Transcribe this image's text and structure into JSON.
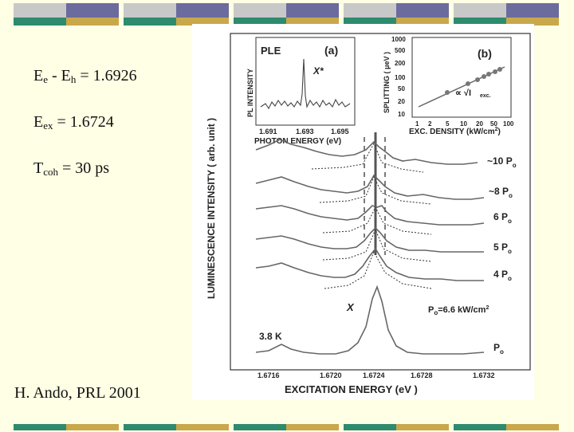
{
  "slide": {
    "equations": [
      {
        "main": "E",
        "sub1": "e",
        "mid": " - E",
        "sub2": "h",
        "tail": " = 1.6926"
      },
      {
        "main": "E",
        "sub1": "ex",
        "mid": " = 1.6724",
        "sub2": "",
        "tail": ""
      },
      {
        "main": "T",
        "sub1": "coh",
        "mid": " = 30 ps",
        "sub2": "",
        "tail": ""
      }
    ],
    "credit": "H. Ando, PRL 2001",
    "colors": {
      "background": "#ffffe5",
      "bar_gray": "#c8c8c8",
      "bar_blue": "#6b6b9e",
      "bar_teal": "#2e8b6e",
      "bar_gold": "#c8a84b"
    }
  },
  "figure": {
    "main_ylabel": "LUMINESCENCE INTENSITY ( arb. unit )",
    "main_xlabel": "EXCITATION ENERGY (eV )",
    "main_xticks": [
      "1.6716",
      "1.6720",
      "1.6724",
      "1.6728",
      "1.6732"
    ],
    "temperature": "3.8 K",
    "x_label": "X",
    "p0_note": "P",
    "p0_note_sub": "o",
    "p0_note_value": "=6.6 kW/cm",
    "p0_note_sup": "2",
    "power_labels": [
      {
        "pre": "~10 P",
        "sub": "o"
      },
      {
        "pre": "~8 P",
        "sub": "o"
      },
      {
        "pre": "6 P",
        "sub": "o"
      },
      {
        "pre": "5 P",
        "sub": "o"
      },
      {
        "pre": "4 P",
        "sub": "o"
      },
      {
        "pre": "P",
        "sub": "o"
      }
    ],
    "inset_a": {
      "title": "PLE",
      "tag": "(a)",
      "peak_label": "X*",
      "ylabel": "PL INTENSITY",
      "xlabel": "PHOTON ENERGY (eV)",
      "xticks": [
        "1.691",
        "1.693",
        "1.695"
      ]
    },
    "inset_b": {
      "tag": "(b)",
      "ylabel": "SPLITTING ( μeV )",
      "xlabel": "EXC. DENSITY (kW/cm",
      "xlabel_sup": "2",
      "xlabel_end": ")",
      "yticks": [
        "1000",
        "500",
        "200",
        "100",
        "50",
        "20",
        "10"
      ],
      "xticks": [
        "1",
        "2",
        "5",
        "10",
        "20",
        "50",
        "100"
      ],
      "fit_label": "∝ √I",
      "fit_sub": "exc."
    }
  }
}
